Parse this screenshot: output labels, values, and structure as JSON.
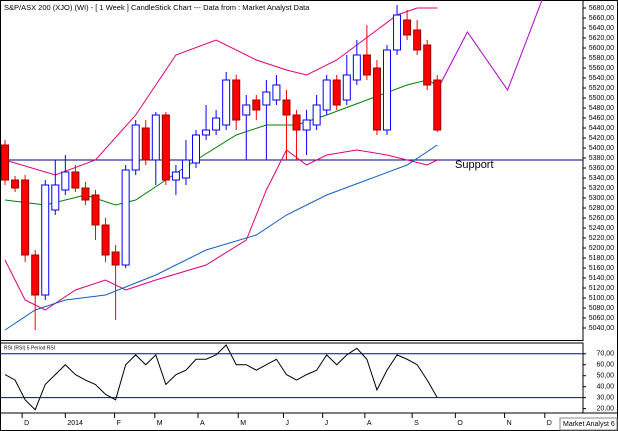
{
  "chart_data": [
    {
      "type": "candlestick",
      "title": "S&P/ASX 200 (XJO) (WI) - [ 1 Week ] CandleStick Chart --- Data from : Market Analyst Data",
      "open": [
        5406,
        5336,
        5336,
        5186,
        5106,
        5276,
        5316,
        5352,
        5320,
        5306,
        5246,
        5192,
        5166,
        5356,
        5440,
        5376,
        5466,
        5336,
        5340,
        5370,
        5426,
        5436,
        5446,
        5536,
        5466,
        5496,
        5486,
        5496,
        5496,
        5466,
        5436,
        5446,
        5476,
        5536,
        5496,
        5536,
        5586,
        5560,
        5436,
        5596,
        5656,
        5636,
        5606,
        5536
      ],
      "high": [
        5416,
        5344,
        5346,
        5196,
        5336,
        5376,
        5386,
        5366,
        5332,
        5316,
        5260,
        5206,
        5366,
        5456,
        5456,
        5472,
        5472,
        5366,
        5416,
        5436,
        5486,
        5476,
        5552,
        5546,
        5506,
        5506,
        5536,
        5546,
        5516,
        5476,
        5476,
        5506,
        5546,
        5546,
        5586,
        5616,
        5646,
        5576,
        5606,
        5686,
        5676,
        5656,
        5616,
        5546
      ],
      "low": [
        5326,
        5312,
        5172,
        5036,
        5096,
        5266,
        5306,
        5312,
        5286,
        5216,
        5172,
        5056,
        5160,
        5346,
        5366,
        5326,
        5326,
        5306,
        5326,
        5360,
        5416,
        5426,
        5436,
        5436,
        5376,
        5456,
        5376,
        5486,
        5376,
        5376,
        5386,
        5436,
        5466,
        5476,
        5486,
        5526,
        5536,
        5426,
        5426,
        5586,
        5616,
        5586,
        5516,
        5432
      ],
      "close": [
        5336,
        5320,
        5186,
        5106,
        5326,
        5326,
        5352,
        5320,
        5296,
        5246,
        5186,
        5166,
        5356,
        5446,
        5376,
        5466,
        5336,
        5352,
        5376,
        5426,
        5436,
        5460,
        5536,
        5456,
        5486,
        5476,
        5512,
        5526,
        5466,
        5436,
        5456,
        5486,
        5536,
        5486,
        5546,
        5586,
        5546,
        5436,
        5596,
        5666,
        5626,
        5596,
        5526,
        5436
      ],
      "up_color": "#0000ff",
      "down_color": "#ff0000",
      "xlim": [
        -0.5,
        57.5
      ],
      "xticks": [
        {
          "value": 1.7,
          "label": "D"
        },
        {
          "value": 6,
          "label": "2014"
        },
        {
          "value": 10.9,
          "label": "F"
        },
        {
          "value": 14.9,
          "label": "M"
        },
        {
          "value": 19.2,
          "label": "A"
        },
        {
          "value": 23.2,
          "label": "M"
        },
        {
          "value": 27.7,
          "label": "J"
        },
        {
          "value": 31.6,
          "label": "J"
        },
        {
          "value": 35.8,
          "label": "A"
        },
        {
          "value": 40.5,
          "label": "S"
        },
        {
          "value": 44.8,
          "label": "O"
        },
        {
          "value": 49.7,
          "label": "N"
        },
        {
          "value": 53.7,
          "label": "D"
        }
      ],
      "ylim": [
        5016,
        5696
      ],
      "yticks": [
        {
          "value": 5040,
          "label": "5040,00"
        },
        {
          "value": 5060,
          "label": "5060,00"
        },
        {
          "value": 5080,
          "label": "5080,00"
        },
        {
          "value": 5100,
          "label": "5100,00"
        },
        {
          "value": 5120,
          "label": "5120,00"
        },
        {
          "value": 5140,
          "label": "5140,00"
        },
        {
          "value": 5160,
          "label": "5160,00"
        },
        {
          "value": 5180,
          "label": "5180,00"
        },
        {
          "value": 5200,
          "label": "5200,00"
        },
        {
          "value": 5220,
          "label": "5220,00"
        },
        {
          "value": 5240,
          "label": "5240,00"
        },
        {
          "value": 5260,
          "label": "5260,00"
        },
        {
          "value": 5280,
          "label": "5280,00"
        },
        {
          "value": 5300,
          "label": "5300,00"
        },
        {
          "value": 5320,
          "label": "5320,00"
        },
        {
          "value": 5340,
          "label": "5340,00"
        },
        {
          "value": 5360,
          "label": "5360,00"
        },
        {
          "value": 5380,
          "label": "5380,00"
        },
        {
          "value": 5400,
          "label": "5400,00"
        },
        {
          "value": 5420,
          "label": "5420,00"
        },
        {
          "value": 5440,
          "label": "5440,00"
        },
        {
          "value": 5460,
          "label": "5460,00"
        },
        {
          "value": 5480,
          "label": "5480,00"
        },
        {
          "value": 5500,
          "label": "5500,00"
        },
        {
          "value": 5520,
          "label": "5520,00"
        },
        {
          "value": 5540,
          "label": "5540,00"
        },
        {
          "value": 5560,
          "label": "5560,00"
        },
        {
          "value": 5580,
          "label": "5580,00"
        },
        {
          "value": 5600,
          "label": "5600,00"
        },
        {
          "value": 5620,
          "label": "5620,00"
        },
        {
          "value": 5640,
          "label": "5640,00"
        },
        {
          "value": 5660,
          "label": "5660,00"
        },
        {
          "value": 5680,
          "label": "5680,00"
        }
      ],
      "overlays": [
        {
          "color": "#e0007a",
          "x": [
            0,
            5,
            9,
            13,
            17,
            21,
            25,
            28,
            30,
            33,
            35,
            37,
            39,
            41,
            43
          ],
          "values": [
            5376,
            5346,
            5376,
            5466,
            5586,
            5616,
            5576,
            5556,
            5546,
            5576,
            5606,
            5636,
            5666,
            5680,
            5680
          ]
        },
        {
          "color": "#e0007a",
          "x": [
            0,
            2,
            4,
            7,
            10,
            12,
            15,
            20,
            24,
            26,
            28,
            30,
            32,
            35,
            38,
            42,
            43
          ],
          "values": [
            5176,
            5096,
            5076,
            5116,
            5136,
            5116,
            5136,
            5166,
            5216,
            5316,
            5396,
            5366,
            5386,
            5396,
            5386,
            5366,
            5376
          ]
        },
        {
          "color": "#008000",
          "x": [
            0,
            4,
            8,
            11,
            13,
            16,
            19,
            23,
            26,
            29,
            32,
            36,
            40,
            42,
            43
          ],
          "values": [
            5296,
            5286,
            5306,
            5286,
            5296,
            5336,
            5376,
            5426,
            5446,
            5446,
            5466,
            5496,
            5526,
            5536,
            5526
          ]
        },
        {
          "color": "#1060c0",
          "x": [
            0,
            3,
            6,
            10,
            15,
            20,
            25,
            28,
            32,
            36,
            40,
            43
          ],
          "values": [
            5036,
            5076,
            5096,
            5106,
            5146,
            5196,
            5226,
            5266,
            5306,
            5336,
            5366,
            5406
          ]
        }
      ],
      "support": {
        "label": "Support",
        "value": 5376,
        "color": "#000080"
      },
      "projection": {
        "color": "#b000d0",
        "x": [
          43,
          46,
          50,
          53.5
        ],
        "values": [
          5516,
          5632,
          5516,
          5700
        ]
      }
    },
    {
      "type": "line",
      "title": "RSI (RSI) 5 Period RSI",
      "values": [
        51,
        46,
        28,
        19,
        42,
        51,
        60,
        51,
        46,
        42,
        33,
        28,
        60,
        69,
        60,
        69,
        42,
        51,
        55,
        65,
        65,
        69,
        78,
        60,
        60,
        55,
        60,
        65,
        51,
        46,
        51,
        55,
        69,
        60,
        69,
        75,
        65,
        37,
        55,
        69,
        65,
        60,
        46,
        30
      ],
      "color": "#000000",
      "xlim": [
        -0.5,
        57.5
      ],
      "ylim": [
        16,
        78
      ],
      "yticks": [
        {
          "value": 20,
          "label": "20,00"
        },
        {
          "value": 30,
          "label": "30,00"
        },
        {
          "value": 40,
          "label": "40,00"
        },
        {
          "value": 50,
          "label": "50,00"
        },
        {
          "value": 60,
          "label": "60,00"
        },
        {
          "value": 70,
          "label": "70,00"
        }
      ],
      "levels": [
        70,
        30
      ],
      "level_color": "#0000c0"
    }
  ],
  "footer": "Market Analyst 6"
}
